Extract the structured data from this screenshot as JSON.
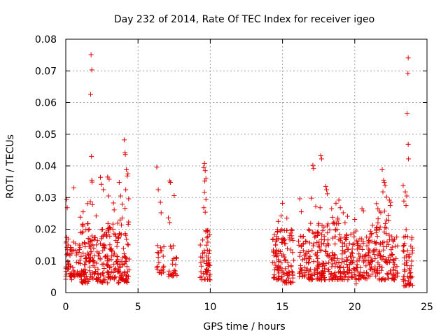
{
  "chart_data": {
    "type": "scatter",
    "title": "Day 232 of 2014, Rate Of TEC Index for receiver igeo",
    "xlabel": "GPS time / hours",
    "ylabel": "ROTI / TECUs",
    "xlim": [
      0,
      25
    ],
    "ylim": [
      0,
      0.08
    ],
    "xticks": [
      0,
      5,
      10,
      15,
      20,
      25
    ],
    "xtick_labels": [
      "0",
      "5",
      "10",
      "15",
      "20",
      "25"
    ],
    "yticks": [
      0,
      0.01,
      0.02,
      0.03,
      0.04,
      0.05,
      0.06,
      0.07,
      0.08
    ],
    "ytick_labels": [
      "0",
      "0.01",
      "0.02",
      "0.03",
      "0.04",
      "0.05",
      "0.06",
      "0.07",
      "0.08"
    ],
    "grid": true,
    "marker": "+",
    "marker_color": "#e00000",
    "clusters": [
      {
        "x0": 0.0,
        "x1": 0.5,
        "ymin": 0.004,
        "ymax": 0.018,
        "n": 45
      },
      {
        "x0": 0.5,
        "x1": 1.0,
        "ymin": 0.005,
        "ymax": 0.016,
        "n": 30
      },
      {
        "x0": 1.0,
        "x1": 1.7,
        "ymin": 0.003,
        "ymax": 0.022,
        "n": 70
      },
      {
        "x0": 1.7,
        "x1": 2.2,
        "ymin": 0.004,
        "ymax": 0.018,
        "n": 40
      },
      {
        "x0": 2.2,
        "x1": 2.9,
        "ymin": 0.003,
        "ymax": 0.02,
        "n": 55
      },
      {
        "x0": 2.9,
        "x1": 3.6,
        "ymin": 0.004,
        "ymax": 0.022,
        "n": 60
      },
      {
        "x0": 3.6,
        "x1": 4.4,
        "ymin": 0.003,
        "ymax": 0.024,
        "n": 70
      },
      {
        "x0": 6.3,
        "x1": 6.8,
        "ymin": 0.006,
        "ymax": 0.016,
        "n": 22
      },
      {
        "x0": 7.1,
        "x1": 7.7,
        "ymin": 0.005,
        "ymax": 0.015,
        "n": 25
      },
      {
        "x0": 9.3,
        "x1": 10.0,
        "ymin": 0.004,
        "ymax": 0.02,
        "n": 55
      },
      {
        "x0": 14.3,
        "x1": 15.0,
        "ymin": 0.004,
        "ymax": 0.02,
        "n": 60
      },
      {
        "x0": 15.0,
        "x1": 15.8,
        "ymin": 0.003,
        "ymax": 0.02,
        "n": 60
      },
      {
        "x0": 16.1,
        "x1": 16.7,
        "ymin": 0.005,
        "ymax": 0.018,
        "n": 40
      },
      {
        "x0": 16.7,
        "x1": 17.5,
        "ymin": 0.004,
        "ymax": 0.022,
        "n": 60
      },
      {
        "x0": 17.5,
        "x1": 18.4,
        "ymin": 0.004,
        "ymax": 0.022,
        "n": 70
      },
      {
        "x0": 18.4,
        "x1": 19.4,
        "ymin": 0.004,
        "ymax": 0.024,
        "n": 80
      },
      {
        "x0": 19.4,
        "x1": 20.2,
        "ymin": 0.004,
        "ymax": 0.02,
        "n": 60
      },
      {
        "x0": 20.2,
        "x1": 21.0,
        "ymin": 0.004,
        "ymax": 0.018,
        "n": 55
      },
      {
        "x0": 21.0,
        "x1": 21.6,
        "ymin": 0.005,
        "ymax": 0.022,
        "n": 45
      },
      {
        "x0": 21.6,
        "x1": 22.4,
        "ymin": 0.004,
        "ymax": 0.026,
        "n": 60
      },
      {
        "x0": 22.4,
        "x1": 23.0,
        "ymin": 0.004,
        "ymax": 0.018,
        "n": 40
      },
      {
        "x0": 23.3,
        "x1": 24.0,
        "ymin": 0.002,
        "ymax": 0.02,
        "n": 55
      }
    ],
    "points": [
      [
        0.05,
        0.0295
      ],
      [
        0.1,
        0.0268
      ],
      [
        0.55,
        0.0331
      ],
      [
        1.0,
        0.0238
      ],
      [
        1.2,
        0.0255
      ],
      [
        1.5,
        0.0281
      ],
      [
        1.75,
        0.0751
      ],
      [
        1.8,
        0.0703
      ],
      [
        1.72,
        0.0626
      ],
      [
        1.78,
        0.043
      ],
      [
        1.8,
        0.0355
      ],
      [
        1.82,
        0.0349
      ],
      [
        1.7,
        0.0287
      ],
      [
        1.85,
        0.0278
      ],
      [
        2.1,
        0.0242
      ],
      [
        2.4,
        0.0364
      ],
      [
        2.45,
        0.0342
      ],
      [
        2.6,
        0.0325
      ],
      [
        2.9,
        0.0365
      ],
      [
        3.0,
        0.0358
      ],
      [
        2.95,
        0.0305
      ],
      [
        3.3,
        0.0283
      ],
      [
        3.35,
        0.0261
      ],
      [
        3.7,
        0.0348
      ],
      [
        3.8,
        0.0305
      ],
      [
        3.9,
        0.0279
      ],
      [
        4.05,
        0.0482
      ],
      [
        4.1,
        0.0442
      ],
      [
        4.12,
        0.0436
      ],
      [
        4.2,
        0.0388
      ],
      [
        4.3,
        0.0375
      ],
      [
        4.25,
        0.0368
      ],
      [
        4.15,
        0.0325
      ],
      [
        4.35,
        0.0296
      ],
      [
        4.1,
        0.0266
      ],
      [
        6.3,
        0.0396
      ],
      [
        6.4,
        0.0325
      ],
      [
        6.55,
        0.0285
      ],
      [
        6.6,
        0.0252
      ],
      [
        7.2,
        0.0352
      ],
      [
        7.25,
        0.0348
      ],
      [
        7.5,
        0.0306
      ],
      [
        7.1,
        0.0236
      ],
      [
        7.2,
        0.0221
      ],
      [
        9.6,
        0.0408
      ],
      [
        9.55,
        0.0395
      ],
      [
        9.65,
        0.0385
      ],
      [
        9.7,
        0.036
      ],
      [
        9.62,
        0.0352
      ],
      [
        9.6,
        0.0317
      ],
      [
        9.7,
        0.0295
      ],
      [
        9.55,
        0.0268
      ],
      [
        9.65,
        0.0254
      ],
      [
        14.7,
        0.0225
      ],
      [
        14.9,
        0.0242
      ],
      [
        15.0,
        0.0282
      ],
      [
        15.3,
        0.0235
      ],
      [
        16.2,
        0.0296
      ],
      [
        16.3,
        0.0255
      ],
      [
        17.1,
        0.0402
      ],
      [
        17.15,
        0.0392
      ],
      [
        17.0,
        0.0298
      ],
      [
        17.3,
        0.0272
      ],
      [
        17.65,
        0.0432
      ],
      [
        17.7,
        0.0422
      ],
      [
        17.6,
        0.0268
      ],
      [
        18.0,
        0.0335
      ],
      [
        18.05,
        0.0325
      ],
      [
        18.1,
        0.0312
      ],
      [
        18.4,
        0.0265
      ],
      [
        18.7,
        0.0282
      ],
      [
        18.9,
        0.0292
      ],
      [
        19.0,
        0.0268
      ],
      [
        19.2,
        0.0252
      ],
      [
        19.5,
        0.0241
      ],
      [
        20.0,
        0.0231
      ],
      [
        20.5,
        0.0265
      ],
      [
        20.6,
        0.0258
      ],
      [
        21.5,
        0.0281
      ],
      [
        21.6,
        0.0265
      ],
      [
        21.9,
        0.0388
      ],
      [
        22.0,
        0.0355
      ],
      [
        22.05,
        0.0348
      ],
      [
        22.1,
        0.0338
      ],
      [
        21.95,
        0.0318
      ],
      [
        22.2,
        0.0302
      ],
      [
        22.4,
        0.0292
      ],
      [
        22.5,
        0.0285
      ],
      [
        22.45,
        0.0275
      ],
      [
        23.35,
        0.0338
      ],
      [
        23.5,
        0.0318
      ],
      [
        23.6,
        0.0305
      ],
      [
        23.4,
        0.0289
      ],
      [
        23.55,
        0.0275
      ],
      [
        23.7,
        0.0741
      ],
      [
        23.68,
        0.0692
      ],
      [
        23.62,
        0.0565
      ],
      [
        23.7,
        0.0468
      ],
      [
        23.72,
        0.0422
      ],
      [
        20.1,
        0.0028
      ],
      [
        23.75,
        0.0022
      ],
      [
        23.4,
        0.0021
      ]
    ]
  }
}
